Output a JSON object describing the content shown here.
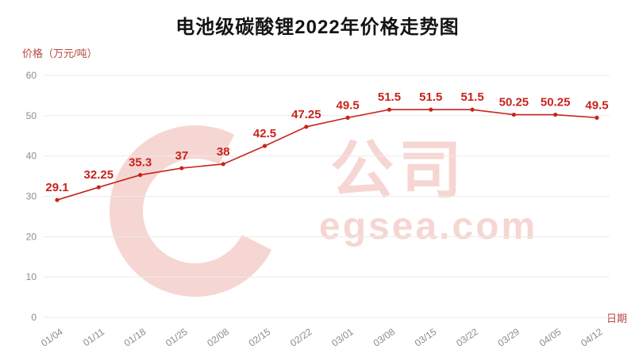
{
  "title": "电池级碳酸锂2022年价格走势图",
  "watermark": {
    "logo": "c-arc",
    "company": "公司",
    "site": "egsea.com",
    "color": "#e0786a"
  },
  "chart_data": {
    "type": "line",
    "title": "电池级碳酸锂2022年价格走势图",
    "ylabel": "价格（万元/吨）",
    "xlabel": "日期",
    "categories": [
      "01/04",
      "01/11",
      "01/18",
      "01/25",
      "02/08",
      "02/15",
      "02/22",
      "03/01",
      "03/08",
      "03/15",
      "03/22",
      "03/29",
      "04/05",
      "04/12"
    ],
    "values": [
      29.1,
      32.25,
      35.3,
      37,
      38,
      42.5,
      47.25,
      49.5,
      51.5,
      51.5,
      51.5,
      50.25,
      50.25,
      49.5
    ],
    "ylim": [
      0,
      60
    ],
    "ytick_step": 10,
    "grid": true,
    "legend": "none",
    "line_color": "#c7241c",
    "label_color": "#c7241c",
    "grid_color": "#ebebeb",
    "tick_color": "#8c8c8c"
  }
}
